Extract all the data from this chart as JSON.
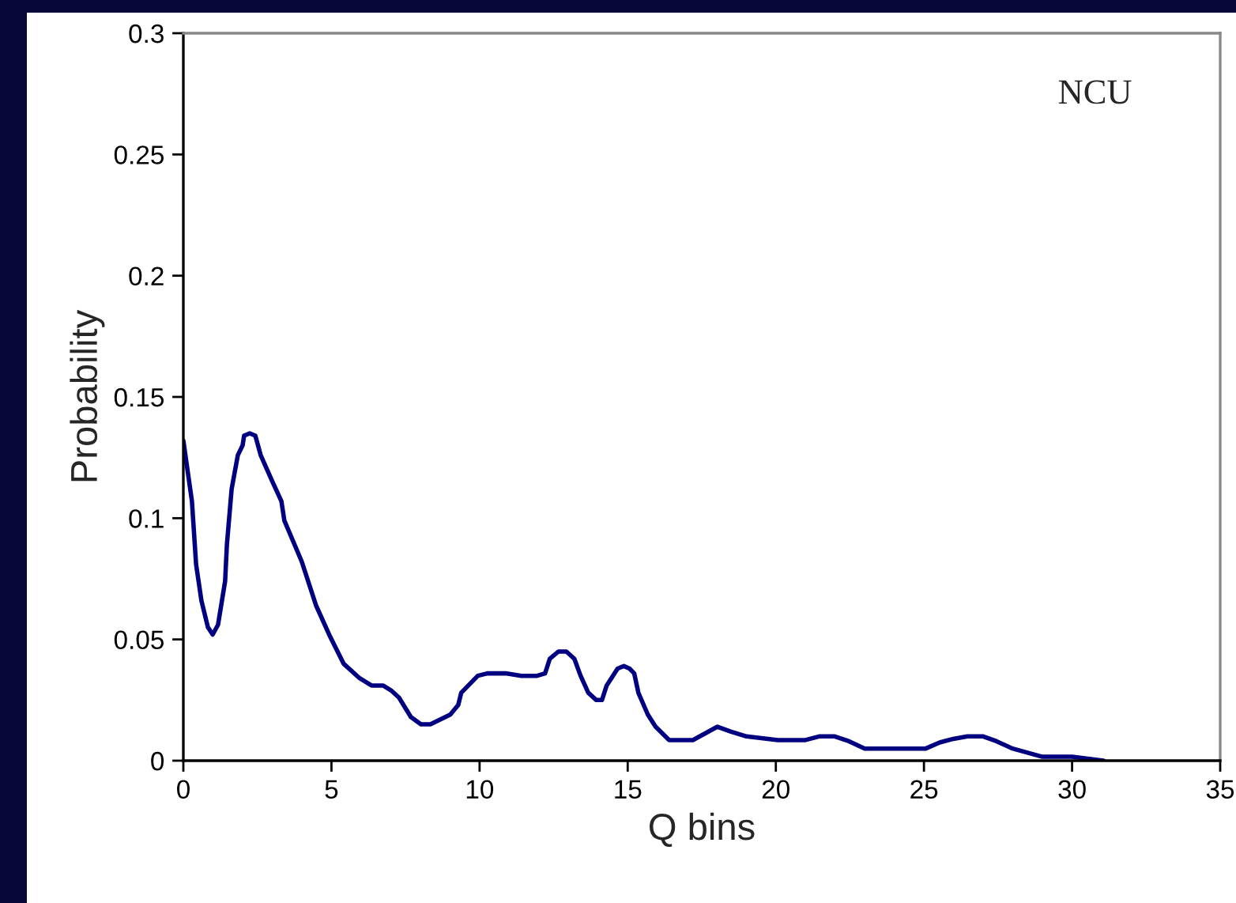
{
  "chart_data": {
    "type": "line",
    "xlabel": "Q bins",
    "ylabel": "Probability",
    "annotations": [
      "NCU"
    ],
    "xlim": [
      0,
      35
    ],
    "ylim": [
      0,
      0.3
    ],
    "xticks": [
      0,
      5,
      10,
      15,
      20,
      25,
      30,
      35
    ],
    "yticks": [
      0,
      0.05,
      0.1,
      0.15,
      0.2,
      0.25,
      0.3
    ],
    "series": [
      {
        "color": "#000080",
        "x": [
          0,
          0.29,
          0.43,
          0.61,
          0.83,
          0.99,
          1.17,
          1.41,
          1.47,
          1.63,
          1.84,
          2.0,
          2.05,
          2.24,
          2.43,
          2.61,
          3.01,
          3.31,
          3.41,
          4.0,
          4.48,
          4.96,
          5.41,
          5.95,
          6.35,
          6.74,
          7.01,
          7.28,
          7.68,
          8.02,
          8.34,
          9.01,
          9.28,
          9.38,
          9.94,
          10.26,
          10.88,
          11.41,
          11.94,
          12.21,
          12.37,
          12.66,
          12.93,
          13.2,
          13.41,
          13.67,
          13.94,
          14.13,
          14.29,
          14.66,
          14.87,
          15.06,
          15.22,
          15.36,
          15.68,
          15.94,
          16.4,
          17.2,
          18.03,
          18.47,
          19.01,
          20.07,
          21.0,
          21.46,
          21.99,
          22.47,
          23.0,
          25.06,
          25.53,
          25.99,
          26.47,
          27.0,
          27.45,
          27.99,
          29.0,
          30.0,
          31.06
        ],
        "values": [
          0.132,
          0.107,
          0.081,
          0.066,
          0.055,
          0.052,
          0.056,
          0.074,
          0.089,
          0.112,
          0.126,
          0.13,
          0.134,
          0.135,
          0.134,
          0.126,
          0.115,
          0.107,
          0.099,
          0.082,
          0.064,
          0.051,
          0.04,
          0.034,
          0.031,
          0.031,
          0.029,
          0.026,
          0.018,
          0.015,
          0.015,
          0.019,
          0.023,
          0.028,
          0.035,
          0.036,
          0.036,
          0.035,
          0.035,
          0.036,
          0.042,
          0.045,
          0.045,
          0.042,
          0.035,
          0.028,
          0.025,
          0.025,
          0.031,
          0.038,
          0.039,
          0.038,
          0.036,
          0.028,
          0.019,
          0.014,
          0.0085,
          0.0085,
          0.014,
          0.012,
          0.01,
          0.0085,
          0.0085,
          0.01,
          0.01,
          0.008,
          0.005,
          0.005,
          0.0075,
          0.009,
          0.01,
          0.01,
          0.008,
          0.005,
          0.0016,
          0.0016,
          0.0
        ]
      }
    ]
  }
}
